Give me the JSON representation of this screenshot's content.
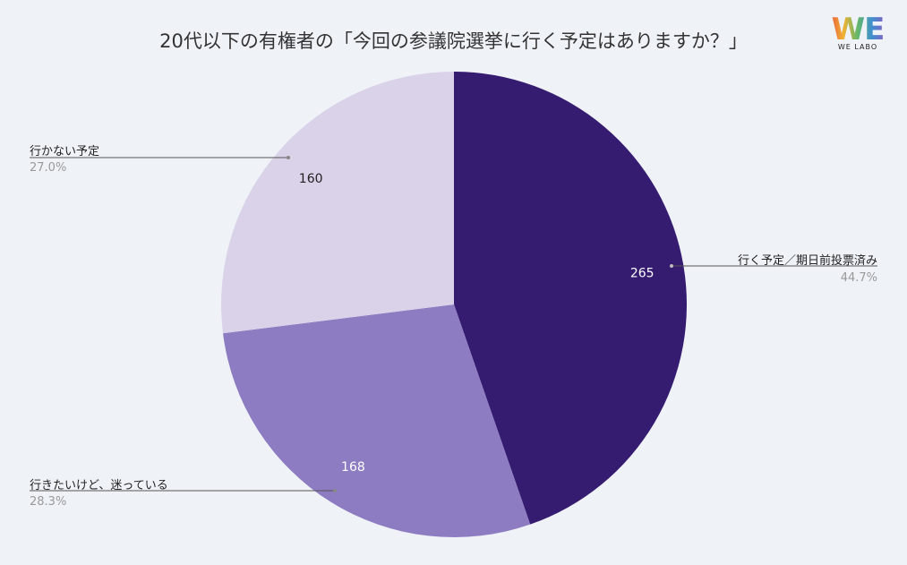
{
  "title": "20代以下の有権者の「今回の参議院選挙に行く予定はありますか？」",
  "logo": {
    "mark": "WE",
    "text": "WE LABO"
  },
  "chart_data": {
    "type": "pie",
    "title": "20代以下の有権者の「今回の参議院選挙に行く予定はありますか？」",
    "slices": [
      {
        "label": "行く予定／期日前投票済み",
        "value": 265,
        "percent": "44.7%",
        "color": "#351c71"
      },
      {
        "label": "行きたいけど、迷っている",
        "value": 168,
        "percent": "28.3%",
        "color": "#8e7cc3"
      },
      {
        "label": "行かない予定",
        "value": 160,
        "percent": "27.0%",
        "color": "#d9d2e9"
      }
    ],
    "start_angle": "12 o'clock, clockwise"
  }
}
